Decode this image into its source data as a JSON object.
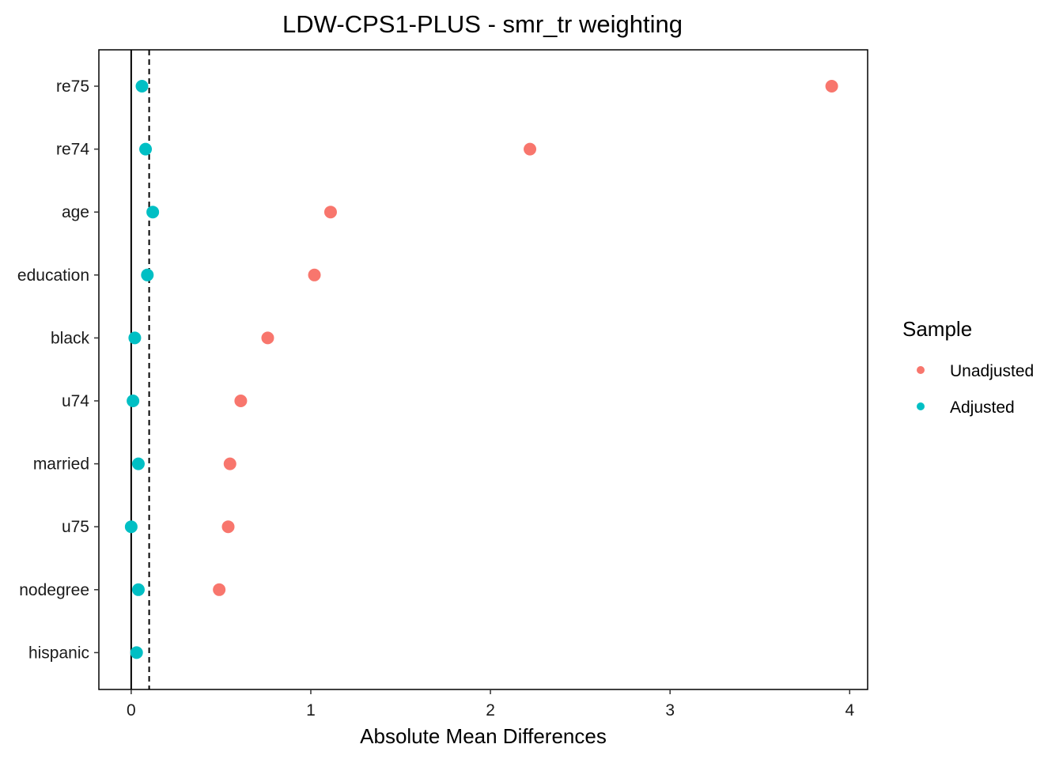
{
  "chart_data": {
    "type": "scatter",
    "title": "LDW-CPS1-PLUS - smr_tr weighting",
    "xlabel": "Absolute Mean Differences",
    "ylabel": "",
    "xlim": [
      -0.18,
      4.1
    ],
    "x_ticks": [
      0,
      1,
      2,
      3,
      4
    ],
    "reference_lines": {
      "solid": 0,
      "dashed": 0.1
    },
    "categories": [
      "re75",
      "re74",
      "age",
      "education",
      "black",
      "u74",
      "married",
      "u75",
      "nodegree",
      "hispanic"
    ],
    "series": [
      {
        "name": "Unadjusted",
        "color": "#F8766D",
        "values": [
          3.9,
          2.22,
          1.11,
          1.02,
          0.76,
          0.61,
          0.55,
          0.54,
          0.49,
          null
        ]
      },
      {
        "name": "Adjusted",
        "color": "#00BFC4",
        "values": [
          0.06,
          0.08,
          0.12,
          0.09,
          0.02,
          0.01,
          0.04,
          0.0,
          0.04,
          0.03
        ]
      }
    ],
    "legend": {
      "title": "Sample",
      "position": "right"
    },
    "grid": false
  }
}
